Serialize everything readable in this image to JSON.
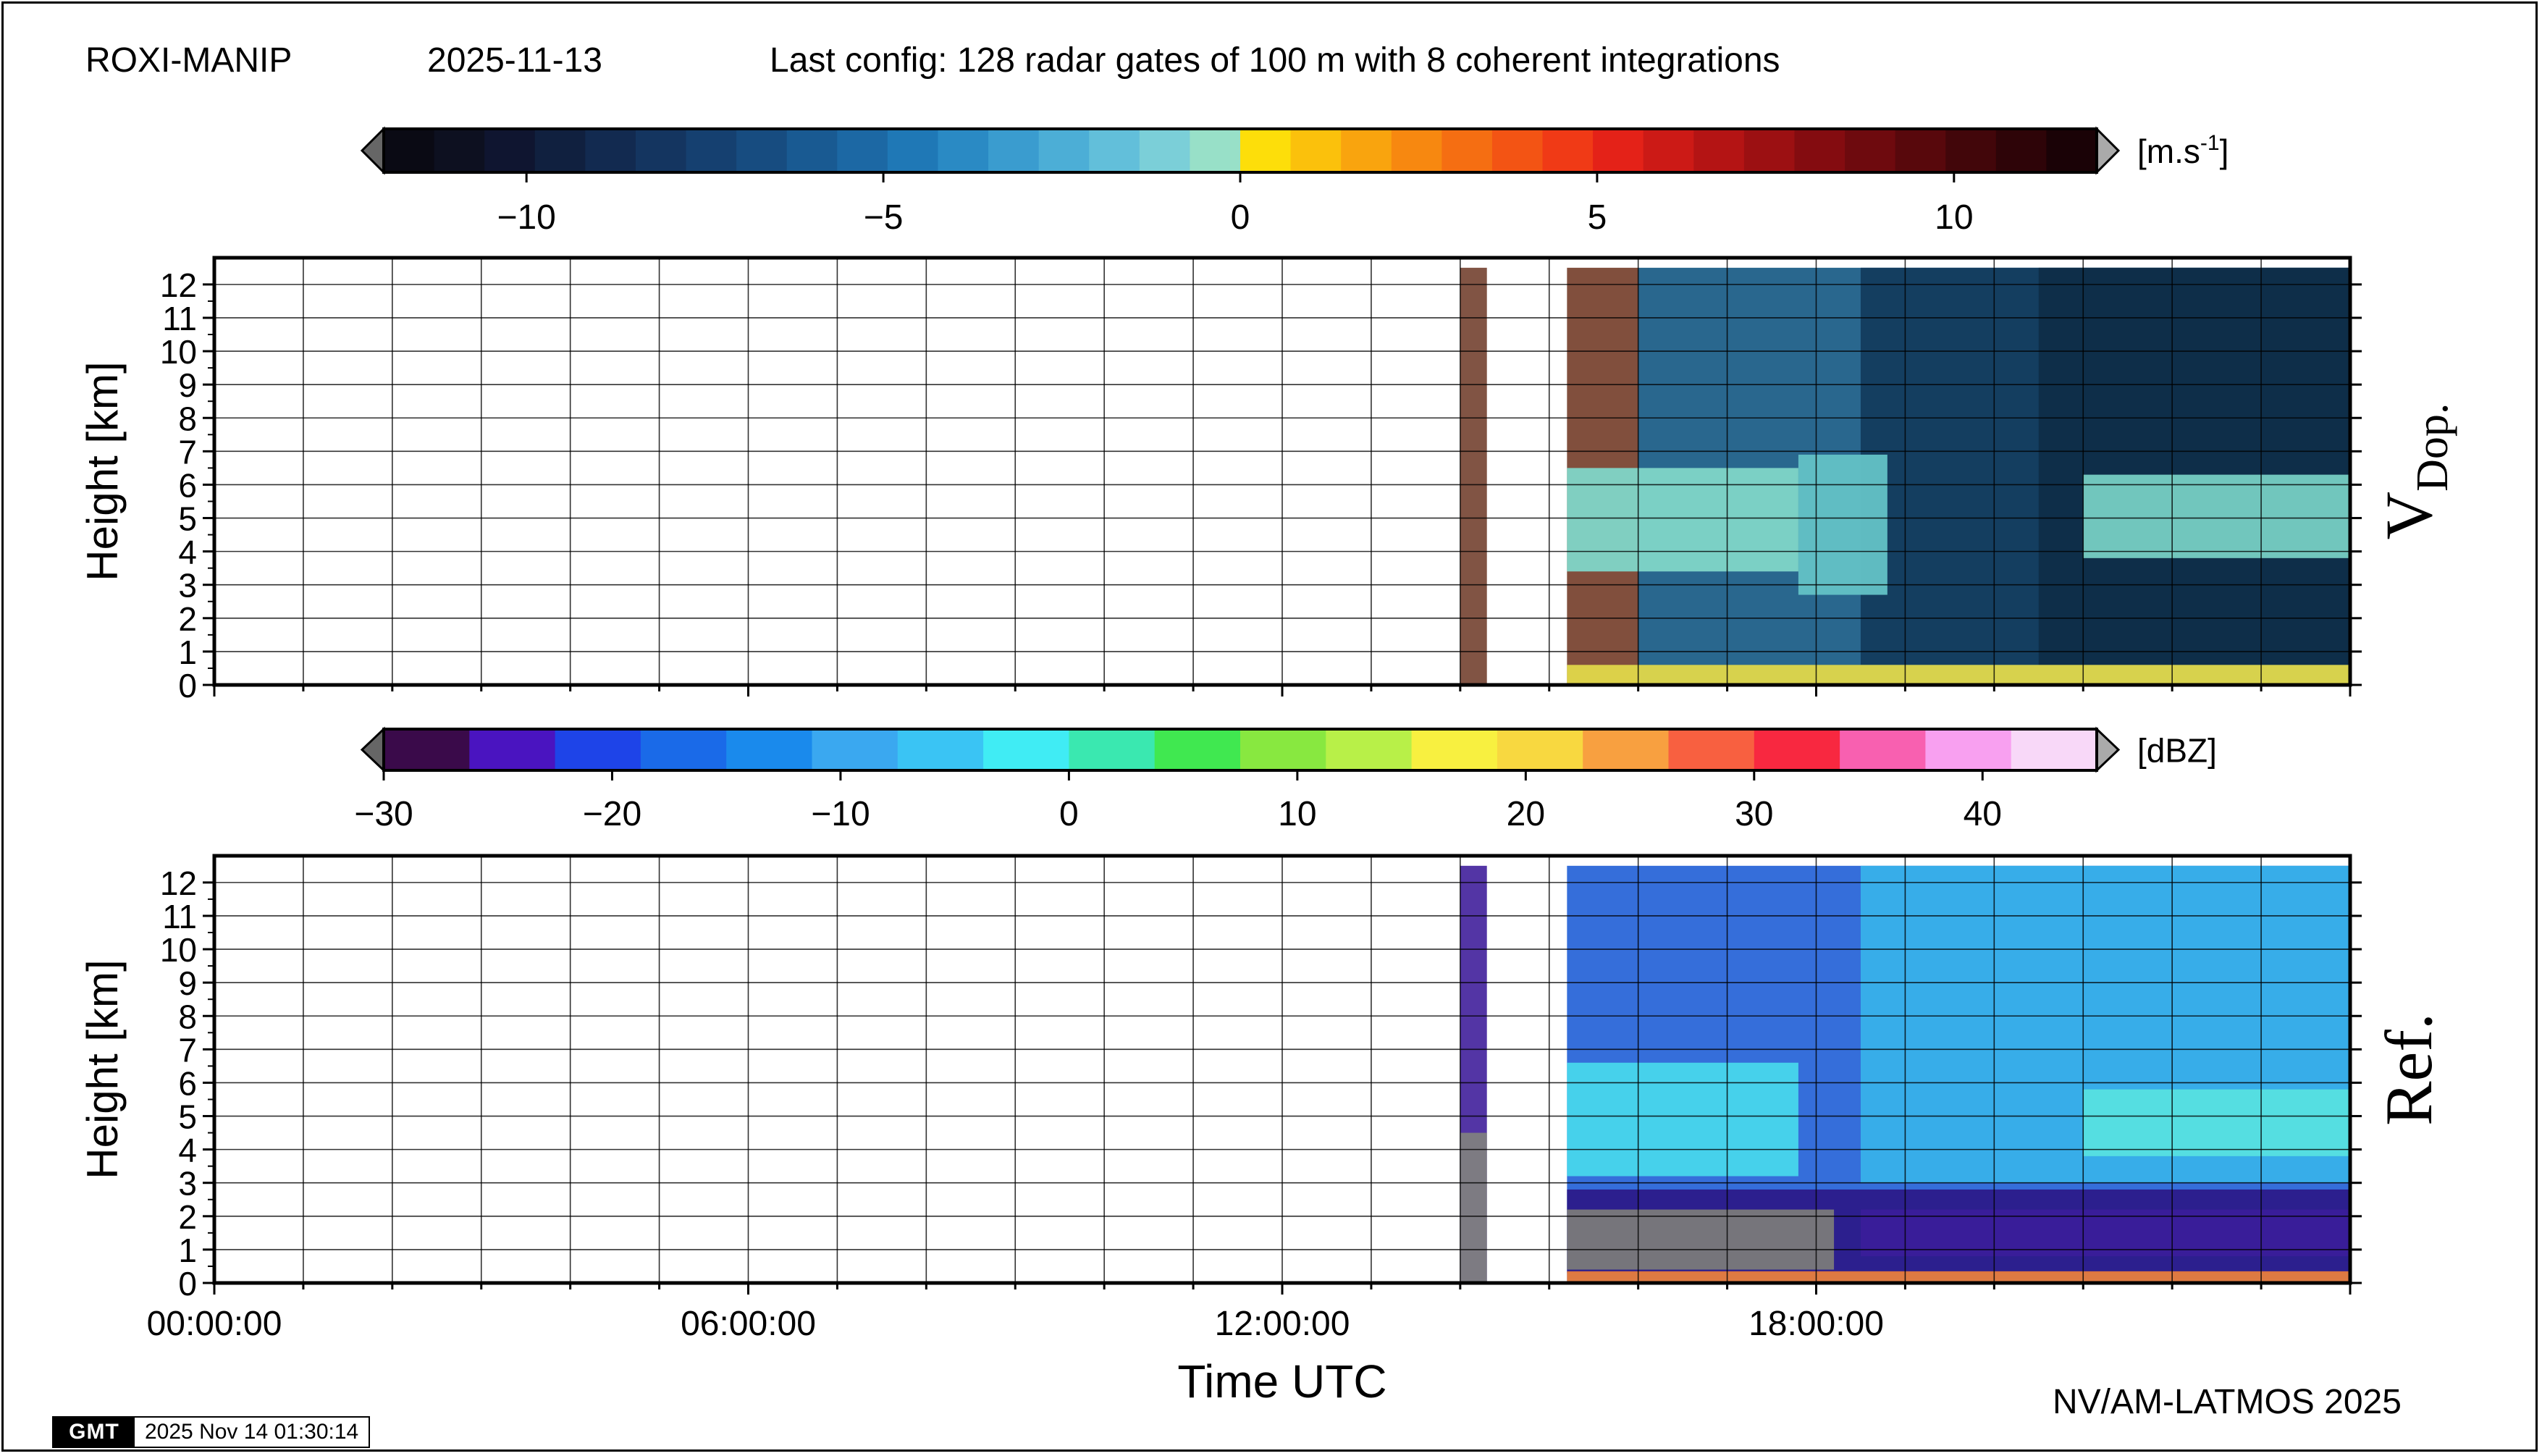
{
  "header": {
    "station": "ROXI-MANIP",
    "date": "2025-11-13",
    "config": "Last config: 128 radar gates of 100 m with 8 coherent integrations"
  },
  "footer": {
    "credit": "NV/AM-LATMOS 2025",
    "gmt_logo": "GMT",
    "gmt_timestamp": "2025 Nov 14 01:30:14"
  },
  "chart_data": [
    {
      "type": "heatmap",
      "panel_label": "V",
      "panel_label_sub": "Dop.",
      "ylabel": "Height [km]",
      "xlabel": "",
      "xlim": [
        0,
        24
      ],
      "ylim": [
        0,
        12.8
      ],
      "yticks": [
        "0",
        "1",
        "2",
        "3",
        "4",
        "5",
        "6",
        "7",
        "8",
        "9",
        "10",
        "11",
        "12"
      ],
      "colorbar": {
        "unit_base": "[m.s",
        "unit_sup": "-1",
        "unit_end": "]",
        "range": [
          -12,
          12
        ],
        "ticks": [
          {
            "value": -10,
            "label": "−10"
          },
          {
            "value": -5,
            "label": "−5"
          },
          {
            "value": 0,
            "label": "0"
          },
          {
            "value": 5,
            "label": "5"
          },
          {
            "value": 10,
            "label": "10"
          }
        ],
        "colors": [
          "#0a0a14",
          "#0d1020",
          "#0f1530",
          "#10203f",
          "#122a50",
          "#143560",
          "#154070",
          "#174c80",
          "#195a92",
          "#1c68a4",
          "#1f78b6",
          "#2a8ac4",
          "#3a9ccf",
          "#4caed6",
          "#62bfda",
          "#7bcfd8",
          "#98e0c8",
          "#fdde0a",
          "#fbc10c",
          "#f9a40e",
          "#f78810",
          "#f56e12",
          "#f35414",
          "#f03a16",
          "#e42218",
          "#cc1a16",
          "#b41414",
          "#9c1012",
          "#840c10",
          "#6e0a0e",
          "#58080c",
          "#42060a",
          "#2e0408",
          "#1a0206"
        ]
      },
      "regions": [
        {
          "description_hidden": "",
          "x": [
            14.0,
            14.3
          ],
          "y": [
            0,
            12.5
          ],
          "color": "#7a4b3a"
        },
        {
          "x": [
            15.2,
            16.0
          ],
          "y": [
            0,
            12.5
          ],
          "color": "#7a4633"
        },
        {
          "x": [
            16.0,
            24.0
          ],
          "y": [
            0,
            12.5
          ],
          "color": "#1e5f88"
        },
        {
          "x": [
            18.5,
            24.0
          ],
          "y": [
            0.6,
            12.5
          ],
          "color": "#133c5e"
        },
        {
          "x": [
            20.5,
            24.0
          ],
          "y": [
            0.6,
            12.5
          ],
          "color": "#0e2d48"
        },
        {
          "x": [
            15.2,
            17.8
          ],
          "y": [
            3.4,
            6.5
          ],
          "color": "#7fd6c8"
        },
        {
          "x": [
            17.8,
            18.8
          ],
          "y": [
            2.7,
            6.9
          ],
          "color": "#63c2c6"
        },
        {
          "x": [
            21.0,
            24.0
          ],
          "y": [
            3.8,
            6.3
          ],
          "color": "#77cfc4"
        },
        {
          "x": [
            15.2,
            24.0
          ],
          "y": [
            0.0,
            0.6
          ],
          "color": "#e0d84a"
        }
      ]
    },
    {
      "type": "heatmap",
      "panel_label": "Ref.",
      "ylabel": "Height [km]",
      "xlabel": "Time UTC",
      "xlim": [
        0,
        24
      ],
      "ylim": [
        0,
        12.8
      ],
      "yticks": [
        "0",
        "1",
        "2",
        "3",
        "4",
        "5",
        "6",
        "7",
        "8",
        "9",
        "10",
        "11",
        "12"
      ],
      "xticks": [
        {
          "value": 0,
          "label": "00:00:00"
        },
        {
          "value": 6,
          "label": "06:00:00"
        },
        {
          "value": 12,
          "label": "12:00:00"
        },
        {
          "value": 18,
          "label": "18:00:00"
        }
      ],
      "colorbar": {
        "unit": "[dBZ]",
        "range": [
          -30,
          45
        ],
        "ticks": [
          {
            "value": -30,
            "label": "−30"
          },
          {
            "value": -20,
            "label": "−20"
          },
          {
            "value": -10,
            "label": "−10"
          },
          {
            "value": 0,
            "label": "0"
          },
          {
            "value": 10,
            "label": "10"
          },
          {
            "value": 20,
            "label": "20"
          },
          {
            "value": 30,
            "label": "30"
          },
          {
            "value": 40,
            "label": "40"
          }
        ],
        "colors": [
          "#3a0a4a",
          "#4a14c0",
          "#1e44e8",
          "#1a6ae8",
          "#1a8aec",
          "#3aa8f0",
          "#3ac4f4",
          "#40ecf4",
          "#3ae8b0",
          "#40e850",
          "#88e840",
          "#b8f048",
          "#f8f040",
          "#f8d840",
          "#f8a040",
          "#f86040",
          "#f82840",
          "#f860b0",
          "#f8a0f0",
          "#f8d8f8"
        ]
      },
      "regions": [
        {
          "x": [
            14.0,
            14.3
          ],
          "y": [
            0,
            12.5
          ],
          "color": "#4a2aa0"
        },
        {
          "x": [
            14.0,
            14.3
          ],
          "y": [
            0,
            4.5
          ],
          "color": "#808080"
        },
        {
          "x": [
            15.2,
            24.0
          ],
          "y": [
            0,
            12.5
          ],
          "color": "#2a66d8"
        },
        {
          "x": [
            18.5,
            24.0
          ],
          "y": [
            3.0,
            12.5
          ],
          "color": "#38b0ea"
        },
        {
          "x": [
            15.2,
            24.0
          ],
          "y": [
            0.3,
            2.8
          ],
          "color": "#2c1a8a"
        },
        {
          "x": [
            18.5,
            24.0
          ],
          "y": [
            0.8,
            2.2
          ],
          "color": "#3a1e9a"
        },
        {
          "x": [
            15.2,
            17.8
          ],
          "y": [
            3.2,
            6.6
          ],
          "color": "#48d6ec"
        },
        {
          "x": [
            21.0,
            24.0
          ],
          "y": [
            3.8,
            5.8
          ],
          "color": "#56e0e0"
        },
        {
          "x": [
            15.2,
            18.2
          ],
          "y": [
            0.4,
            2.2
          ],
          "color": "#7a7a7a"
        },
        {
          "x": [
            15.2,
            24.0
          ],
          "y": [
            0.0,
            0.35
          ],
          "color": "#e87a3a"
        }
      ]
    }
  ]
}
